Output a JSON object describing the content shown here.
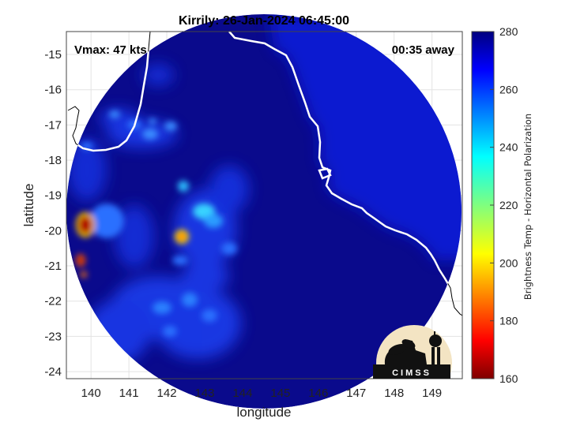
{
  "title": "Kirrily: 26-Jan-2024 06:45:00",
  "vmax_label": "Vmax: 47 kts",
  "time_label": "00:35 away",
  "logo_text": "CIMSS",
  "logo_icon": "cimss-logo-icon",
  "chart_data": {
    "type": "heatmap",
    "xlabel": "longitude",
    "ylabel": "latitude",
    "xlim": [
      139.35,
      149.8
    ],
    "ylim": [
      -24.2,
      -14.35
    ],
    "x_ticks": [
      "140",
      "141",
      "142",
      "143",
      "144",
      "145",
      "146",
      "147",
      "148",
      "149"
    ],
    "y_ticks": [
      "-15",
      "-16",
      "-17",
      "-18",
      "-19",
      "-20",
      "-21",
      "-22",
      "-23",
      "-24"
    ],
    "grid": true,
    "colorbar": {
      "label": "Brightness Temp - Horizontal Polarization",
      "ticks": [
        "280",
        "260",
        "240",
        "220",
        "200",
        "180",
        "160"
      ],
      "range": [
        160,
        280
      ],
      "colormap": "jet"
    },
    "field": {
      "background_value": 274,
      "cold_features": [
        {
          "lon": 139.75,
          "lat": -19.8,
          "value": 165
        },
        {
          "lon": 139.7,
          "lat": -20.8,
          "value": 180
        },
        {
          "lon": 142.45,
          "lat": -20.2,
          "value": 215
        },
        {
          "lon": 143.0,
          "lat": -19.45,
          "value": 232
        },
        {
          "lon": 142.5,
          "lat": -18.65,
          "value": 238
        },
        {
          "lon": 141.6,
          "lat": -17.0,
          "value": 252
        },
        {
          "lon": 140.9,
          "lat": -16.5,
          "value": 258
        },
        {
          "lon": 142.3,
          "lat": -16.9,
          "value": 252
        },
        {
          "lon": 142.8,
          "lat": -20.8,
          "value": 262
        },
        {
          "lon": 141.5,
          "lat": -22.3,
          "value": 258
        },
        {
          "lon": 142.5,
          "lat": -22.6,
          "value": 259
        },
        {
          "lon": 143.0,
          "lat": -23.2,
          "value": 262
        },
        {
          "lon": 146.8,
          "lat": -18.5,
          "value": 268
        },
        {
          "lon": 147.8,
          "lat": -17.9,
          "value": 268
        }
      ]
    },
    "colors": {
      "background_blue": "#0a0a8c",
      "coastline": "#ffffff",
      "land_outline": "#000000",
      "logo_bg": "#f3e4c3"
    }
  }
}
